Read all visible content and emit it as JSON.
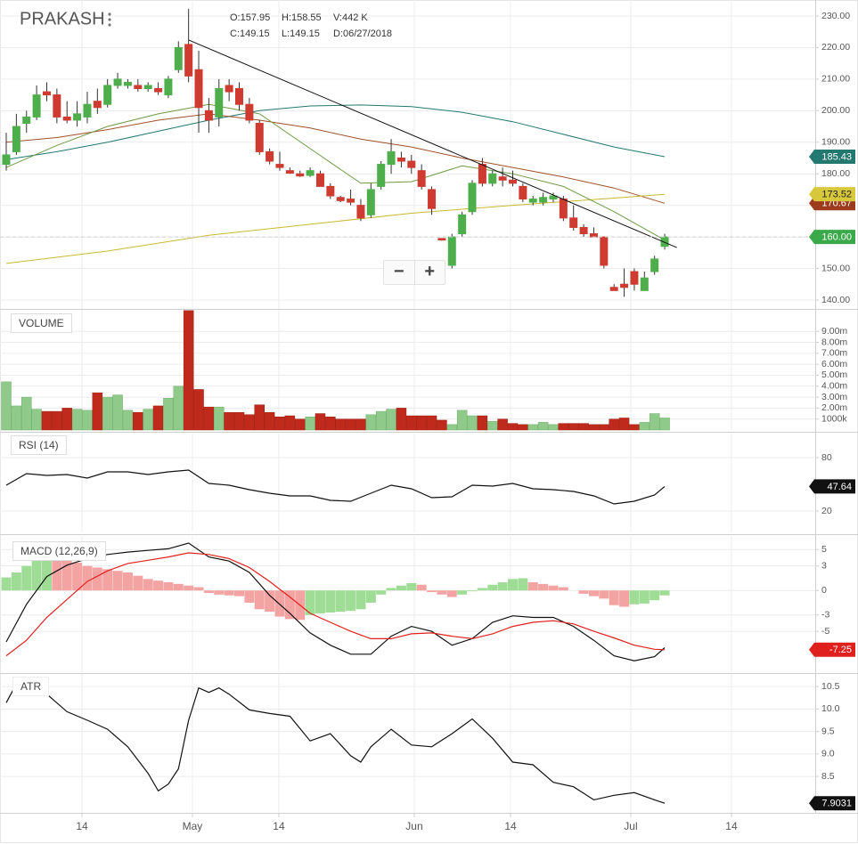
{
  "chart_data": [
    {
      "type": "candlestick",
      "title": "PRAKASH",
      "info": [
        "O:157.95",
        "H:158.55",
        "V:442 K",
        "C:149.15",
        "L:149.15",
        "D:06/27/2018"
      ],
      "open": [
        183,
        187,
        196,
        198,
        206,
        205,
        198,
        197,
        198,
        203,
        202,
        208,
        208,
        208,
        207,
        207,
        205,
        213,
        221,
        213,
        200,
        198,
        208,
        207,
        202,
        196,
        187,
        183,
        181,
        180,
        179.5,
        180,
        176,
        172.5,
        172,
        170,
        167,
        176,
        183,
        185,
        184,
        181,
        175,
        159.5,
        151,
        161,
        168,
        183,
        177,
        179,
        178,
        176,
        171,
        171,
        172,
        172,
        166,
        163,
        161,
        160,
        144,
        145,
        149,
        143,
        149,
        157
      ],
      "high": [
        193,
        199,
        200,
        208,
        209,
        207,
        203,
        203,
        206,
        207,
        210,
        212,
        210,
        210,
        209,
        209,
        211,
        222,
        232.3,
        219,
        204,
        210,
        210,
        209,
        204,
        197,
        188,
        187,
        182,
        181,
        182,
        181,
        177,
        173,
        175,
        172,
        177,
        184,
        191,
        187,
        186,
        183,
        176,
        159.5,
        161,
        168,
        178,
        185,
        181,
        182,
        181,
        177,
        173,
        174,
        174,
        173,
        170,
        164,
        163,
        160,
        145,
        150,
        150,
        149,
        154,
        161
      ],
      "low": [
        181,
        186,
        193,
        197,
        203,
        196,
        196,
        195,
        196,
        199,
        201,
        207,
        207,
        206,
        206,
        205,
        204,
        212,
        209,
        193,
        193,
        195,
        203,
        200,
        196,
        186,
        183,
        181,
        180,
        179,
        179,
        176,
        172,
        171,
        170,
        165,
        166,
        175,
        180,
        182,
        180,
        175,
        167,
        158.8,
        150,
        160,
        167,
        176,
        176,
        176,
        176,
        171,
        170,
        170,
        171,
        165,
        162,
        160,
        160,
        150,
        143,
        141,
        143,
        143,
        148,
        156
      ],
      "close": [
        186,
        195,
        198,
        205,
        205,
        198,
        197,
        199,
        202,
        201,
        208,
        210,
        209,
        207,
        208,
        206,
        210,
        220,
        211,
        201,
        197,
        207,
        206,
        202,
        197,
        187,
        184,
        182,
        180.2,
        179.3,
        181,
        176,
        173,
        171.5,
        171,
        166,
        175,
        183,
        187,
        184,
        182,
        176,
        169,
        159,
        160,
        167,
        177,
        177,
        180,
        178,
        177,
        172,
        172,
        172.5,
        173,
        166,
        163,
        161,
        160,
        151,
        143,
        144,
        145,
        147,
        153,
        160
      ],
      "up_color": "#4fae4c",
      "down_color": "#cf3b30",
      "overlays": [
        {
          "color": "#23786f",
          "x": [
            0,
            5,
            10,
            15,
            20,
            25,
            30,
            35,
            40,
            45,
            50,
            55,
            60,
            65
          ],
          "values": [
            184.5,
            187,
            190,
            193.5,
            197,
            200,
            201.5,
            201.8,
            201.3,
            199.5,
            196.5,
            192.5,
            188.5,
            185.43
          ]
        },
        {
          "color": "#a0502a",
          "x": [
            0,
            5,
            10,
            15,
            20,
            25,
            30,
            35,
            40,
            45,
            50,
            55,
            60,
            65
          ],
          "values": [
            190,
            191.5,
            194,
            197,
            199,
            197,
            194.5,
            191,
            188.5,
            185,
            182,
            179,
            175.5,
            170.67
          ]
        },
        {
          "color": "#c9b92e",
          "x": [
            0,
            10,
            20,
            30,
            40,
            50,
            60,
            65
          ],
          "values": [
            151.6,
            155.5,
            160.5,
            164,
            167.5,
            170,
            172.3,
            173.52
          ]
        },
        {
          "color": "#6f9a45",
          "x": [
            0,
            5,
            10,
            15,
            20,
            25,
            30,
            35,
            40,
            45,
            50,
            55,
            60,
            65
          ],
          "values": [
            182,
            189,
            195,
            199,
            202,
            199,
            188,
            177,
            177.5,
            182.5,
            180,
            176,
            168,
            159
          ]
        }
      ],
      "trendline": {
        "color": "#111111",
        "x": [
          18,
          66.2
        ],
        "values": [
          222.4,
          156.6
        ]
      },
      "price_tags": [
        {
          "value": 185.43,
          "label": "185.43",
          "color": "#23786f"
        },
        {
          "value": 170.67,
          "label": "170.67",
          "color": "#9c3c1c"
        },
        {
          "value": 173.52,
          "label": "173.52",
          "color": "#d8c83c"
        },
        {
          "value": 160,
          "label": "160.00",
          "color": "#3aa94a",
          "line": "dashed"
        }
      ],
      "ylim": [
        137.17,
        235.08
      ],
      "yticks": [
        {
          "value": 230,
          "label": "230.00"
        },
        {
          "value": 220,
          "label": "220.00"
        },
        {
          "value": 210,
          "label": "210.00"
        },
        {
          "value": 200,
          "label": "200.00"
        },
        {
          "value": 190,
          "label": "190.00"
        },
        {
          "value": 180,
          "label": "180.00"
        },
        {
          "value": 170,
          "label": "170.00"
        },
        {
          "value": 160,
          "label": "160.00"
        },
        {
          "value": 150,
          "label": "150.00"
        },
        {
          "value": 140,
          "label": "140.00"
        }
      ],
      "grid": true
    },
    {
      "type": "bar",
      "title": "VOLUME",
      "values": [
        4.4,
        2.2,
        3.0,
        1.9,
        1.7,
        1.7,
        2.0,
        1.9,
        1.8,
        3.4,
        3.0,
        3.2,
        1.8,
        1.6,
        1.9,
        2.2,
        2.9,
        4.0,
        10.9,
        3.7,
        2.1,
        2.1,
        1.6,
        1.6,
        1.4,
        2.3,
        1.6,
        1.2,
        1.3,
        1.0,
        1.2,
        1.5,
        1.2,
        1.0,
        1.0,
        1.0,
        1.4,
        1.7,
        1.9,
        2.0,
        1.3,
        1.3,
        1.3,
        0.9,
        0.5,
        1.8,
        1.3,
        1.3,
        0.8,
        1.0,
        0.6,
        0.5,
        0.5,
        0.7,
        0.5,
        0.6,
        0.6,
        0.6,
        0.5,
        0.5,
        1.0,
        1.1,
        0.5,
        0.7,
        1.5,
        1.1
      ],
      "up_color": "#8fca8b",
      "down_color": "#bf2a1c",
      "ylim": [
        0,
        10.97
      ],
      "yticks": [
        {
          "value": 9,
          "label": "9.00m"
        },
        {
          "value": 8,
          "label": "8.00m"
        },
        {
          "value": 7,
          "label": "7.00m"
        },
        {
          "value": 6,
          "label": "6.00m"
        },
        {
          "value": 5,
          "label": "5.00m"
        },
        {
          "value": 4,
          "label": "4.00m"
        },
        {
          "value": 3,
          "label": "3.00m"
        },
        {
          "value": 2,
          "label": "2.00m"
        },
        {
          "value": 1,
          "label": "1000k"
        }
      ],
      "grid": true
    },
    {
      "type": "line",
      "title": "RSI (14)",
      "color": "#111111",
      "x": [
        0,
        2,
        4,
        6,
        8,
        10,
        12,
        14,
        16,
        18,
        20,
        22,
        24,
        26,
        28,
        30,
        32,
        34,
        36,
        38,
        40,
        42,
        44,
        46,
        48,
        50,
        52,
        54,
        56,
        58,
        60,
        62,
        64,
        65
      ],
      "values": [
        49,
        62,
        60,
        61,
        57,
        64,
        64,
        61,
        64,
        66,
        51,
        49,
        44,
        40,
        37,
        37,
        32,
        31,
        40,
        49,
        45,
        35,
        36,
        49,
        48,
        51,
        45,
        44,
        42,
        37,
        28,
        31,
        38,
        47.64
      ],
      "last_value": 47.64,
      "tag_color": "#111111",
      "ylim": [
        -3,
        107
      ],
      "yticks": [
        80,
        20
      ],
      "grid": true
    },
    {
      "type": "macd",
      "title": "MACD (12,26,9)",
      "histogram": [
        1.6,
        2.2,
        3.0,
        3.8,
        4.4,
        4.2,
        3.8,
        3.4,
        3.0,
        2.8,
        2.6,
        2.4,
        2.2,
        1.8,
        1.4,
        1.2,
        1.0,
        0.8,
        0.6,
        0.4,
        -0.3,
        -0.5,
        -0.6,
        -0.7,
        -1.5,
        -2.3,
        -2.6,
        -3.2,
        -3.5,
        -3.6,
        -3.0,
        -2.8,
        -2.7,
        -2.6,
        -2.5,
        -2.3,
        -1.5,
        -0.5,
        0.3,
        0.6,
        0.9,
        0.7,
        -0.2,
        -0.5,
        -0.8,
        -0.5,
        -0.1,
        0.3,
        0.7,
        1.0,
        1.4,
        1.5,
        1.0,
        0.8,
        0.6,
        0.4,
        0,
        -0.4,
        -0.7,
        -1.0,
        -1.8,
        -2.0,
        -1.7,
        -1.6,
        -1.2,
        -0.6
      ],
      "up_color": "#9fdc96",
      "down_color": "#f4a3a3",
      "lines": [
        {
          "color": "#111111",
          "x": [
            0,
            2,
            4,
            6,
            8,
            10,
            12,
            14,
            16,
            18,
            20,
            22,
            24,
            26,
            28,
            30,
            32,
            34,
            36,
            38,
            40,
            42,
            44,
            46,
            48,
            50,
            52,
            54,
            56,
            58,
            60,
            62,
            64,
            65
          ],
          "values": [
            -6.3,
            -1.7,
            1.7,
            3.1,
            3.9,
            4.4,
            4.7,
            4.9,
            5.1,
            5.8,
            4.1,
            3.6,
            2.2,
            -0.6,
            -2.8,
            -5.2,
            -6.7,
            -7.8,
            -7.8,
            -5.6,
            -4.4,
            -5,
            -6.7,
            -5.9,
            -3.9,
            -3.1,
            -3.3,
            -3.3,
            -4.4,
            -6.1,
            -8,
            -8.6,
            -8.1,
            -7
          ]
        },
        {
          "color": "#e0201c",
          "x": [
            0,
            2,
            4,
            6,
            8,
            10,
            12,
            14,
            16,
            18,
            20,
            22,
            24,
            26,
            28,
            30,
            32,
            34,
            36,
            38,
            40,
            42,
            44,
            46,
            48,
            50,
            52,
            54,
            56,
            58,
            60,
            62,
            64,
            65
          ],
          "values": [
            -8,
            -6.1,
            -3.3,
            -1.1,
            1.1,
            2.4,
            3.3,
            3.7,
            4.1,
            4.6,
            4.4,
            3.9,
            2.8,
            1.1,
            -0.8,
            -2.8,
            -3.9,
            -5,
            -5.9,
            -5.9,
            -5.3,
            -5.2,
            -5.6,
            -5.9,
            -5.3,
            -4.4,
            -3.9,
            -3.7,
            -4.1,
            -5,
            -5.8,
            -6.7,
            -7.2,
            -7.25
          ]
        }
      ],
      "last_value": -7.25,
      "tag_color": "#e0201c",
      "ylim": [
        -10,
        6.67
      ],
      "yticks": [
        5,
        3,
        0,
        -3,
        -5
      ],
      "grid": true
    },
    {
      "type": "line",
      "title": "ATR",
      "color": "#111111",
      "x": [
        0,
        1.1,
        2,
        4,
        6,
        8,
        10,
        12,
        14,
        15,
        16,
        17,
        18,
        19,
        20,
        21,
        22,
        24,
        26,
        28,
        30,
        32,
        34,
        35,
        36,
        38,
        40,
        42,
        44,
        46,
        48,
        50,
        52,
        54,
        56,
        58,
        60,
        62,
        64,
        65
      ],
      "values": [
        10.14,
        10.6,
        10.5,
        10.33,
        9.94,
        9.75,
        9.55,
        9.16,
        8.57,
        8.18,
        8.33,
        8.67,
        9.75,
        10.47,
        10.37,
        10.47,
        10.33,
        9.98,
        9.9,
        9.84,
        9.29,
        9.45,
        8.96,
        8.82,
        9.16,
        9.55,
        9.2,
        9.16,
        9.45,
        9.78,
        9.35,
        8.82,
        8.76,
        8.37,
        8.27,
        7.98,
        8.08,
        8.14,
        7.98,
        7.9031
      ],
      "last_value": 7.9031,
      "tag_color": "#111111",
      "ylim": [
        7.69,
        10.78
      ],
      "yticks": [
        10.5,
        {
          "value": 10,
          "label": "10.0"
        },
        9.5,
        {
          "value": 9,
          "label": "9.0"
        },
        8.5
      ],
      "xlim": [
        -0.616,
        79.86
      ],
      "xticks": [
        {
          "value": 7.48,
          "label": "14"
        },
        {
          "value": 18.38,
          "label": "May"
        },
        {
          "value": 26.91,
          "label": "14"
        },
        {
          "value": 40.28,
          "label": "Jun"
        },
        {
          "value": 49.78,
          "label": "14"
        },
        {
          "value": 61.65,
          "label": "Jul"
        },
        {
          "value": 71.59,
          "label": "14"
        }
      ],
      "grid": true
    }
  ]
}
